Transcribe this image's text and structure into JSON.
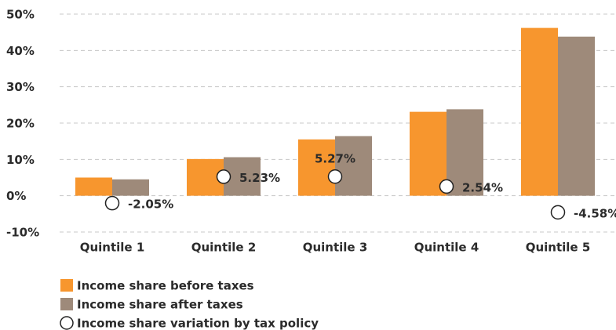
{
  "chart_data": {
    "type": "bar",
    "categories": [
      "Quintile 1",
      "Quintile 2",
      "Quintile 3",
      "Quintile 4",
      "Quintile 5"
    ],
    "series": [
      {
        "name": "Income share before taxes",
        "color": "#f7962e",
        "values": [
          5.0,
          10.1,
          15.5,
          23.1,
          46.2
        ]
      },
      {
        "name": "Income share after taxes",
        "color": "#9e8a7a",
        "values": [
          4.5,
          10.6,
          16.4,
          23.8,
          43.8
        ]
      },
      {
        "name": "Income share variation by tax policy",
        "type": "scatter",
        "color": "#ffffff",
        "values": [
          -2.05,
          5.23,
          5.27,
          2.54,
          -4.58
        ],
        "value_labels": [
          "-2.05%",
          "5.23%",
          "5.27%",
          "2.54%",
          "-4.58%"
        ]
      }
    ],
    "ylim": [
      -10,
      50
    ],
    "yticks": [
      {
        "value": -10,
        "label": "-10%"
      },
      {
        "value": 0,
        "label": "0%"
      },
      {
        "value": 10,
        "label": "10%"
      },
      {
        "value": 20,
        "label": "20%"
      },
      {
        "value": 30,
        "label": "30%"
      },
      {
        "value": 40,
        "label": "40%"
      },
      {
        "value": 50,
        "label": "50%"
      }
    ],
    "grid": true
  }
}
